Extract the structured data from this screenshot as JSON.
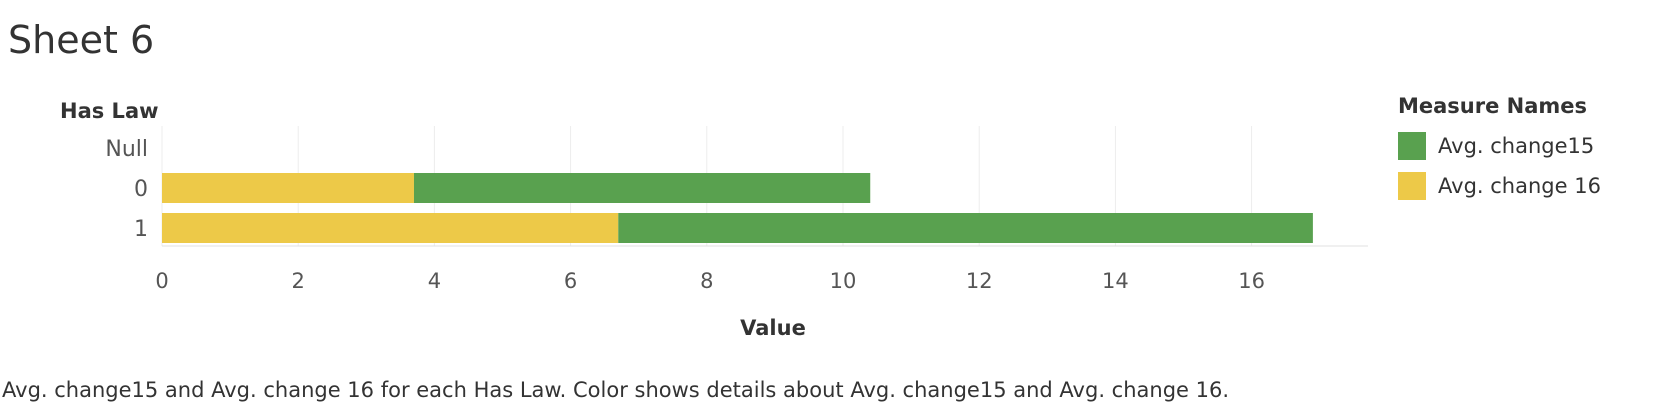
{
  "sheet_title": "Sheet 6",
  "caption": "Avg. change15 and Avg. change 16 for each Has Law.  Color shows details about Avg. change15 and Avg. change 16.",
  "legend": {
    "title": "Measure Names",
    "items": [
      {
        "label": "Avg. change15",
        "color": "#59a14f"
      },
      {
        "label": "Avg. change 16",
        "color": "#edc948"
      }
    ]
  },
  "chart_data": {
    "type": "bar",
    "orientation": "horizontal",
    "stacked": true,
    "row_header": "Has Law",
    "xlabel": "Value",
    "categories": [
      "Null",
      "0",
      "1"
    ],
    "series": [
      {
        "name": "Avg. change 16",
        "color": "#edc948",
        "values": [
          null,
          3.7,
          6.7
        ]
      },
      {
        "name": "Avg. change15",
        "color": "#59a14f",
        "values": [
          null,
          6.7,
          10.2
        ]
      }
    ],
    "xlim": [
      0,
      17.7
    ],
    "xticks": [
      "0",
      "2",
      "4",
      "6",
      "8",
      "10",
      "12",
      "14",
      "16"
    ],
    "grid": true,
    "legend_position": "right"
  }
}
